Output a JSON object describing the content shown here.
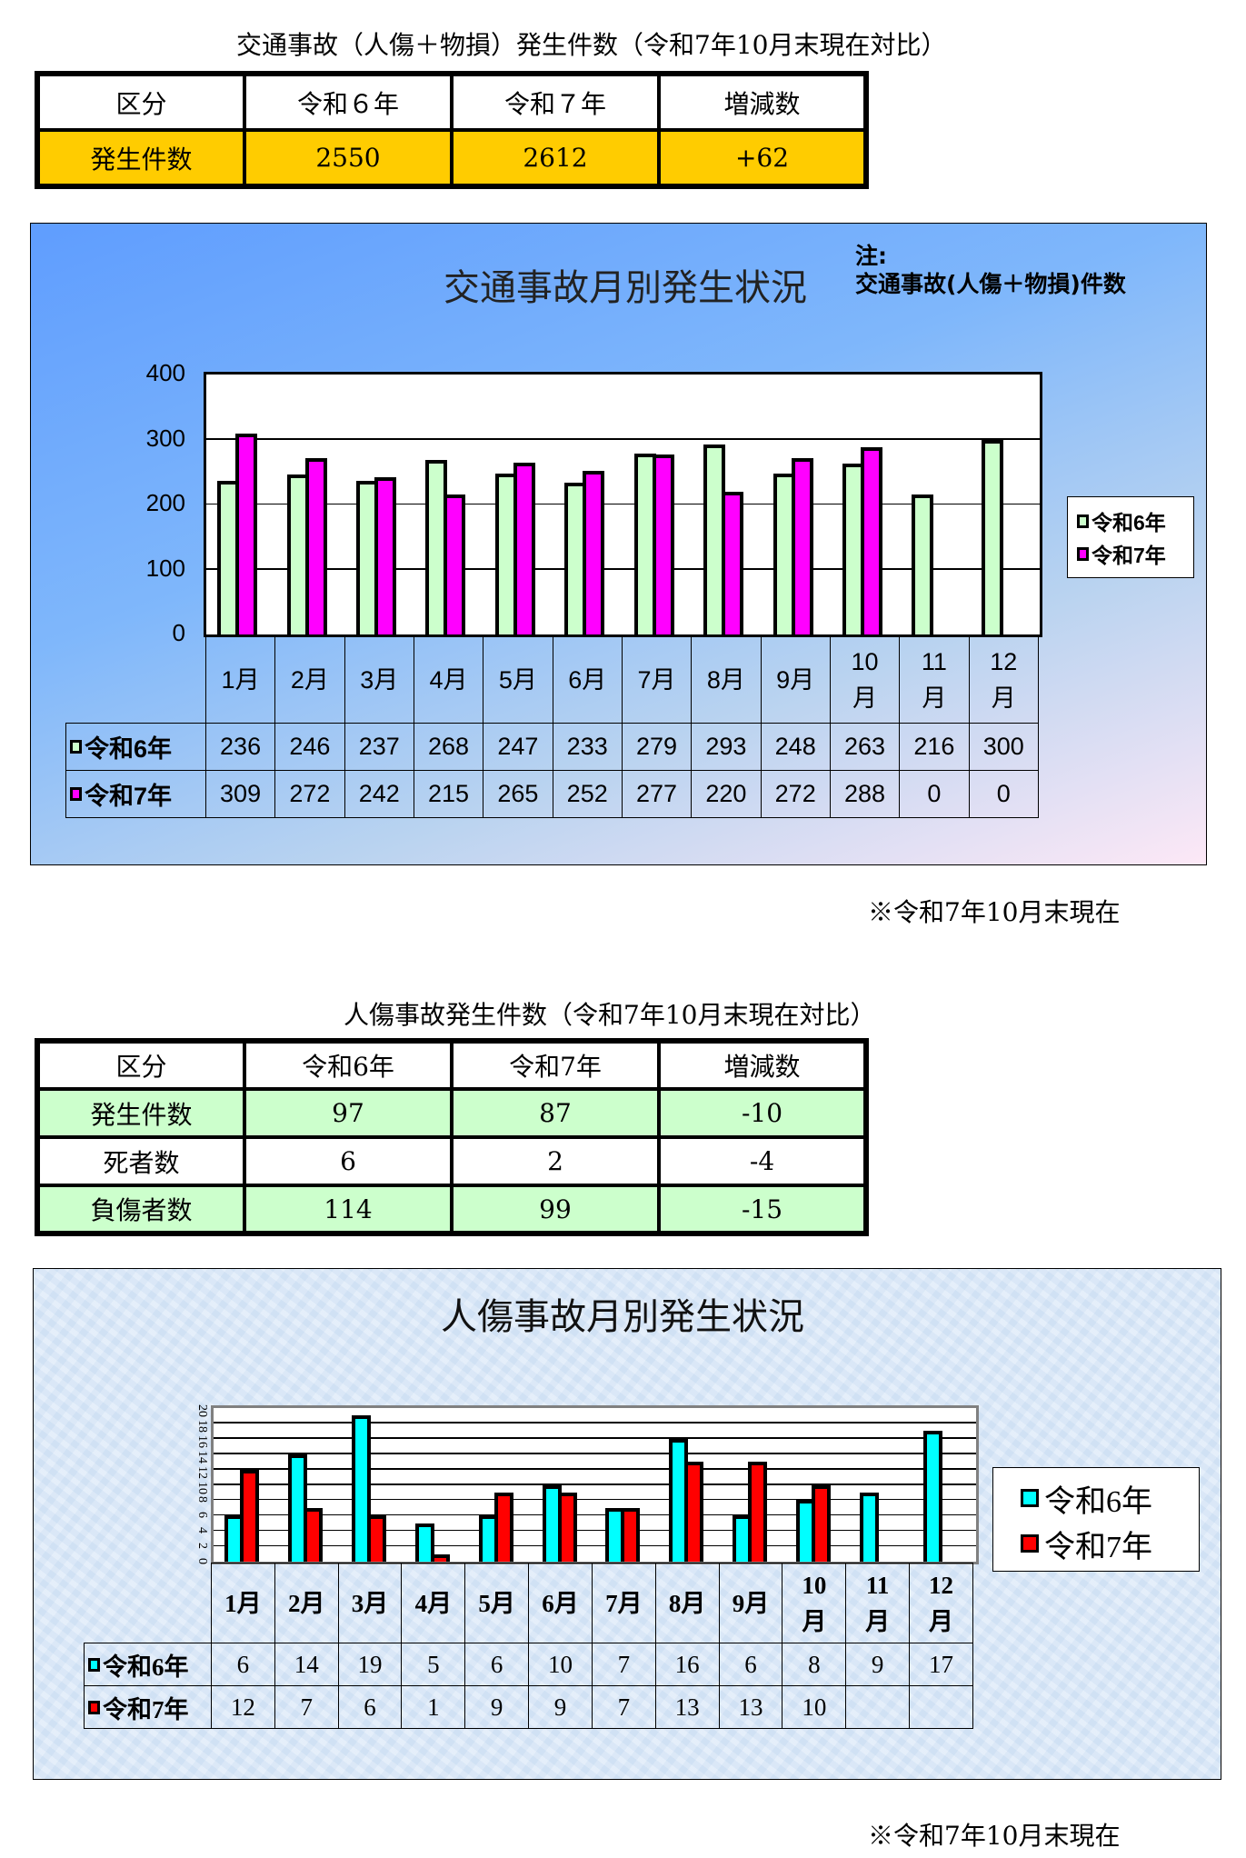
{
  "section1": {
    "caption": "交通事故（人傷＋物損）発生件数（令和7年10月末現在対比）",
    "table": {
      "headers": [
        "区分",
        "令和６年",
        "令和７年",
        "増減数"
      ],
      "rows": [
        {
          "label": "発生件数",
          "r6": "2550",
          "r7": "2612",
          "diff": "+62"
        }
      ]
    },
    "row_color": "#ffcc00"
  },
  "chart1": {
    "title": "交通事故月別発生状況",
    "note_line1": "注:",
    "note_line2": "交通事故(人傷＋物損)件数",
    "yticks": [
      "400",
      "300",
      "200",
      "100",
      "0"
    ],
    "months": [
      "1月",
      "2月",
      "3月",
      "4月",
      "5月",
      "6月",
      "7月",
      "8月",
      "9月",
      "10月",
      "11月",
      "12月"
    ],
    "legend": [
      "令和6年",
      "令和7年"
    ],
    "series_colors": [
      "#ccffcc",
      "#ff00ff"
    ],
    "r6": [
      "236",
      "246",
      "237",
      "268",
      "247",
      "233",
      "279",
      "293",
      "248",
      "263",
      "216",
      "300"
    ],
    "r7": [
      "309",
      "272",
      "242",
      "215",
      "265",
      "252",
      "277",
      "220",
      "272",
      "288",
      "0",
      "0"
    ],
    "asof": "※令和7年10月末現在"
  },
  "section2": {
    "caption": "人傷事故発生件数（令和7年10月末現在対比）",
    "table": {
      "headers": [
        "区分",
        "令和6年",
        "令和7年",
        "増減数"
      ],
      "rows": [
        {
          "label": "発生件数",
          "r6": "97",
          "r7": "87",
          "diff": "-10"
        },
        {
          "label": "死者数",
          "r6": "6",
          "r7": "2",
          "diff": "-4"
        },
        {
          "label": "負傷者数",
          "r6": "114",
          "r7": "99",
          "diff": "-15"
        }
      ]
    }
  },
  "chart2": {
    "title": "人傷事故月別発生状況",
    "yticks": [
      "20",
      "18",
      "16",
      "14",
      "12",
      "10",
      "8",
      "6",
      "4",
      "2",
      "0"
    ],
    "months": [
      "1月",
      "2月",
      "3月",
      "4月",
      "5月",
      "6月",
      "7月",
      "8月",
      "9月",
      "10月",
      "11月",
      "12月"
    ],
    "legend": [
      "令和6年",
      "令和7年"
    ],
    "series_colors": [
      "#00ffff",
      "#ff0000"
    ],
    "r6": [
      "6",
      "14",
      "19",
      "5",
      "6",
      "10",
      "7",
      "16",
      "6",
      "8",
      "9",
      "17"
    ],
    "r7": [
      "12",
      "7",
      "6",
      "1",
      "9",
      "9",
      "7",
      "13",
      "13",
      "10",
      "",
      ""
    ],
    "asof": "※令和7年10月末現在"
  },
  "chart_data": [
    {
      "type": "bar",
      "title": "交通事故月別発生状況",
      "subtitle": "注: 交通事故(人傷＋物損)件数",
      "categories": [
        "1月",
        "2月",
        "3月",
        "4月",
        "5月",
        "6月",
        "7月",
        "8月",
        "9月",
        "10月",
        "11月",
        "12月"
      ],
      "series": [
        {
          "name": "令和6年",
          "color": "#ccffcc",
          "values": [
            236,
            246,
            237,
            268,
            247,
            233,
            279,
            293,
            248,
            263,
            216,
            300
          ]
        },
        {
          "name": "令和7年",
          "color": "#ff00ff",
          "values": [
            309,
            272,
            242,
            215,
            265,
            252,
            277,
            220,
            272,
            288,
            0,
            0
          ]
        }
      ],
      "xlabel": "",
      "ylabel": "",
      "ylim": [
        0,
        400
      ],
      "yticks": [
        0,
        100,
        200,
        300,
        400
      ],
      "grid": true,
      "legend_position": "right",
      "data_table": true
    },
    {
      "type": "bar",
      "title": "人傷事故月別発生状況",
      "categories": [
        "1月",
        "2月",
        "3月",
        "4月",
        "5月",
        "6月",
        "7月",
        "8月",
        "9月",
        "10月",
        "11月",
        "12月"
      ],
      "series": [
        {
          "name": "令和6年",
          "color": "#00ffff",
          "values": [
            6,
            14,
            19,
            5,
            6,
            10,
            7,
            16,
            6,
            8,
            9,
            17
          ]
        },
        {
          "name": "令和7年",
          "color": "#ff0000",
          "values": [
            12,
            7,
            6,
            1,
            9,
            9,
            7,
            13,
            13,
            10,
            null,
            null
          ]
        }
      ],
      "xlabel": "",
      "ylabel": "",
      "ylim": [
        0,
        20
      ],
      "yticks": [
        0,
        2,
        4,
        6,
        8,
        10,
        12,
        14,
        16,
        18,
        20
      ],
      "grid": true,
      "legend_position": "right",
      "data_table": true
    }
  ]
}
